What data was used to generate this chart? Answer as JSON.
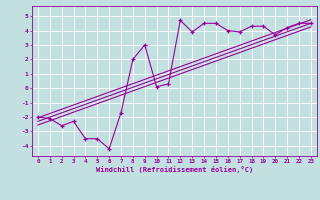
{
  "xlabel": "Windchill (Refroidissement éolien,°C)",
  "ylabel": "",
  "xlim": [
    -0.5,
    23.5
  ],
  "ylim": [
    -4.7,
    5.7
  ],
  "yticks": [
    -4,
    -3,
    -2,
    -1,
    0,
    1,
    2,
    3,
    4,
    5
  ],
  "xticks": [
    0,
    1,
    2,
    3,
    4,
    5,
    6,
    7,
    8,
    9,
    10,
    11,
    12,
    13,
    14,
    15,
    16,
    17,
    18,
    19,
    20,
    21,
    22,
    23
  ],
  "bg_color": "#c2e0e0",
  "line_color": "#990099",
  "grid_color": "#ffffff",
  "scatter_x": [
    0,
    1,
    2,
    3,
    4,
    5,
    6,
    7,
    8,
    9,
    10,
    11,
    12,
    13,
    14,
    15,
    16,
    17,
    18,
    19,
    20,
    21,
    22,
    23
  ],
  "scatter_y": [
    -2.0,
    -2.1,
    -2.6,
    -2.3,
    -3.5,
    -3.5,
    -4.2,
    -1.7,
    2.0,
    3.0,
    0.1,
    0.3,
    4.7,
    3.9,
    4.5,
    4.5,
    4.0,
    3.9,
    4.3,
    4.3,
    3.7,
    4.2,
    4.5,
    4.5
  ],
  "trend1_x": [
    0,
    23
  ],
  "trend1_y": [
    -2.3,
    4.5
  ],
  "trend2_x": [
    0,
    23
  ],
  "trend2_y": [
    -2.55,
    4.25
  ],
  "trend3_x": [
    0,
    23
  ],
  "trend3_y": [
    -2.05,
    4.75
  ]
}
